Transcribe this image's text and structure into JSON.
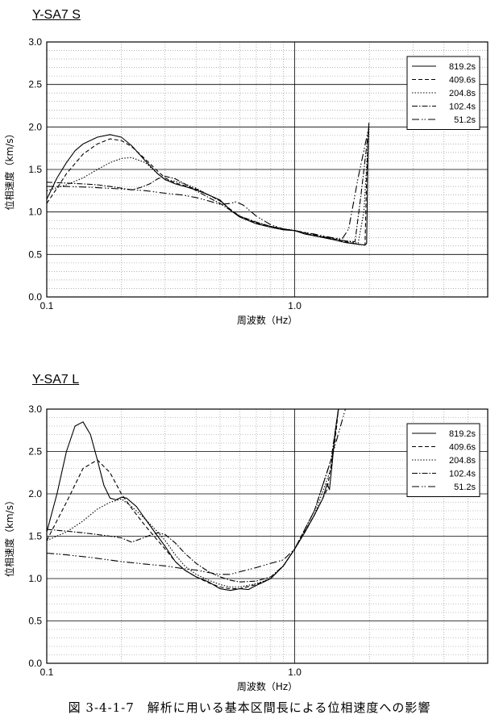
{
  "caption": "図 3-4-1-7　解析に用いる基本区間長による位相速度への影響",
  "chart_data": [
    {
      "type": "line",
      "title": "Y-SA7 S",
      "xlabel": "周波数（Hz）",
      "ylabel": "位相速度（km/s）",
      "xscale": "log",
      "xlim": [
        0.1,
        6.0
      ],
      "ylim": [
        0.0,
        3.0
      ],
      "xticks": [
        "0.1",
        "1.0"
      ],
      "yticks": [
        "0.0",
        "0.5",
        "1.0",
        "1.5",
        "2.0",
        "2.5",
        "3.0"
      ],
      "grid": true,
      "legend_position": "top-right",
      "series": [
        {
          "name": "819.2s",
          "dash": "solid",
          "x": [
            0.1,
            0.11,
            0.12,
            0.13,
            0.14,
            0.16,
            0.18,
            0.2,
            0.22,
            0.25,
            0.28,
            0.3,
            0.33,
            0.36,
            0.4,
            0.45,
            0.5,
            0.55,
            0.6,
            0.7,
            0.8,
            0.9,
            1.0,
            1.1,
            1.2,
            1.4,
            1.6,
            1.8,
            1.92,
            1.95,
            1.97,
            1.99
          ],
          "y": [
            1.15,
            1.4,
            1.58,
            1.72,
            1.8,
            1.88,
            1.91,
            1.88,
            1.78,
            1.6,
            1.45,
            1.38,
            1.33,
            1.3,
            1.26,
            1.2,
            1.14,
            1.02,
            0.94,
            0.86,
            0.82,
            0.79,
            0.78,
            0.74,
            0.72,
            0.68,
            0.64,
            0.62,
            0.61,
            0.63,
            1.5,
            2.05
          ]
        },
        {
          "name": "409.6s",
          "dash": "5,3",
          "x": [
            0.1,
            0.11,
            0.12,
            0.14,
            0.16,
            0.18,
            0.2,
            0.22,
            0.25,
            0.28,
            0.3,
            0.33,
            0.36,
            0.4,
            0.45,
            0.5,
            0.55,
            0.6,
            0.7,
            0.8,
            0.9,
            1.0,
            1.2,
            1.4,
            1.6,
            1.8,
            1.92,
            1.95,
            1.99
          ],
          "y": [
            1.1,
            1.28,
            1.45,
            1.68,
            1.8,
            1.86,
            1.84,
            1.77,
            1.62,
            1.48,
            1.4,
            1.34,
            1.31,
            1.27,
            1.2,
            1.13,
            1.03,
            0.95,
            0.87,
            0.83,
            0.8,
            0.78,
            0.72,
            0.69,
            0.65,
            0.62,
            0.61,
            1.4,
            2.0
          ]
        },
        {
          "name": "204.8s",
          "dash": "1.5,2",
          "x": [
            0.1,
            0.12,
            0.14,
            0.16,
            0.18,
            0.2,
            0.22,
            0.25,
            0.28,
            0.3,
            0.33,
            0.36,
            0.4,
            0.45,
            0.5,
            0.55,
            0.6,
            0.7,
            0.8,
            0.9,
            1.0,
            1.2,
            1.4,
            1.6,
            1.8,
            1.9,
            1.99
          ],
          "y": [
            1.25,
            1.32,
            1.4,
            1.5,
            1.58,
            1.63,
            1.64,
            1.58,
            1.45,
            1.38,
            1.36,
            1.33,
            1.28,
            1.2,
            1.13,
            1.03,
            0.95,
            0.88,
            0.83,
            0.8,
            0.78,
            0.72,
            0.69,
            0.66,
            0.63,
            1.0,
            2.0
          ]
        },
        {
          "name": "102.4s",
          "dash": "7,2,1.5,2",
          "x": [
            0.1,
            0.12,
            0.14,
            0.16,
            0.18,
            0.2,
            0.22,
            0.24,
            0.26,
            0.28,
            0.3,
            0.33,
            0.36,
            0.4,
            0.45,
            0.5,
            0.55,
            0.6,
            0.7,
            0.8,
            0.9,
            1.0,
            1.2,
            1.4,
            1.6,
            1.75,
            1.85,
            1.99
          ],
          "y": [
            1.35,
            1.34,
            1.33,
            1.32,
            1.3,
            1.28,
            1.26,
            1.29,
            1.33,
            1.39,
            1.42,
            1.39,
            1.33,
            1.25,
            1.17,
            1.1,
            1.02,
            0.95,
            0.88,
            0.83,
            0.8,
            0.78,
            0.73,
            0.69,
            0.66,
            0.65,
            1.2,
            2.0
          ]
        },
        {
          "name": "51.2s",
          "dash": "9,3,1.5,2,1.5,3",
          "x": [
            0.1,
            0.12,
            0.15,
            0.2,
            0.25,
            0.3,
            0.35,
            0.4,
            0.45,
            0.5,
            0.55,
            0.58,
            0.62,
            0.7,
            0.8,
            0.9,
            1.0,
            1.2,
            1.4,
            1.55,
            1.65,
            1.8,
            1.99
          ],
          "y": [
            1.3,
            1.3,
            1.29,
            1.27,
            1.25,
            1.22,
            1.2,
            1.17,
            1.13,
            1.09,
            1.1,
            1.12,
            1.08,
            0.95,
            0.85,
            0.8,
            0.78,
            0.74,
            0.7,
            0.68,
            0.8,
            1.4,
            2.0
          ]
        }
      ]
    },
    {
      "type": "line",
      "title": "Y-SA7 L",
      "xlabel": "周波数（Hz）",
      "ylabel": "位相速度（km/s）",
      "xscale": "log",
      "xlim": [
        0.1,
        6.0
      ],
      "ylim": [
        0.0,
        3.0
      ],
      "xticks": [
        "0.1",
        "1.0"
      ],
      "yticks": [
        "0.0",
        "0.5",
        "1.0",
        "1.5",
        "2.0",
        "2.5",
        "3.0"
      ],
      "grid": true,
      "legend_position": "top-right",
      "series": [
        {
          "name": "819.2s",
          "dash": "solid",
          "x": [
            0.1,
            0.11,
            0.12,
            0.13,
            0.14,
            0.15,
            0.16,
            0.17,
            0.18,
            0.19,
            0.2,
            0.21,
            0.23,
            0.25,
            0.28,
            0.3,
            0.33,
            0.36,
            0.4,
            0.45,
            0.5,
            0.55,
            0.6,
            0.65,
            0.7,
            0.75,
            0.8,
            0.9,
            1.0,
            1.1,
            1.2,
            1.3,
            1.35,
            1.38,
            1.42,
            1.45,
            1.5
          ],
          "y": [
            1.55,
            2.0,
            2.5,
            2.8,
            2.85,
            2.7,
            2.4,
            2.1,
            1.95,
            1.93,
            1.96,
            1.95,
            1.85,
            1.7,
            1.5,
            1.38,
            1.2,
            1.1,
            1.02,
            0.96,
            0.88,
            0.86,
            0.88,
            0.87,
            0.92,
            0.96,
            1.0,
            1.15,
            1.35,
            1.55,
            1.75,
            1.95,
            2.12,
            2.05,
            2.4,
            2.7,
            3.0
          ]
        },
        {
          "name": "409.6s",
          "dash": "5,3",
          "x": [
            0.1,
            0.12,
            0.14,
            0.16,
            0.18,
            0.2,
            0.22,
            0.25,
            0.28,
            0.3,
            0.33,
            0.36,
            0.4,
            0.45,
            0.5,
            0.55,
            0.6,
            0.7,
            0.8,
            0.9,
            1.0,
            1.2,
            1.35,
            1.45,
            1.5
          ],
          "y": [
            1.45,
            1.9,
            2.3,
            2.4,
            2.25,
            2.0,
            1.83,
            1.62,
            1.45,
            1.35,
            1.2,
            1.1,
            1.02,
            0.95,
            0.9,
            0.88,
            0.88,
            0.93,
            1.0,
            1.15,
            1.35,
            1.75,
            2.05,
            2.6,
            3.0
          ]
        },
        {
          "name": "204.8s",
          "dash": "1.5,2",
          "x": [
            0.1,
            0.12,
            0.14,
            0.16,
            0.18,
            0.2,
            0.22,
            0.25,
            0.28,
            0.3,
            0.33,
            0.36,
            0.4,
            0.45,
            0.5,
            0.55,
            0.6,
            0.7,
            0.8,
            0.9,
            1.0,
            1.2,
            1.4,
            1.5
          ],
          "y": [
            1.45,
            1.55,
            1.68,
            1.82,
            1.9,
            1.94,
            1.85,
            1.7,
            1.55,
            1.45,
            1.28,
            1.15,
            1.05,
            0.98,
            0.93,
            0.9,
            0.9,
            0.94,
            1.0,
            1.15,
            1.35,
            1.75,
            2.3,
            3.0
          ]
        },
        {
          "name": "102.4s",
          "dash": "7,2,1.5,2",
          "x": [
            0.1,
            0.12,
            0.14,
            0.16,
            0.18,
            0.2,
            0.22,
            0.24,
            0.26,
            0.28,
            0.3,
            0.33,
            0.36,
            0.4,
            0.45,
            0.5,
            0.55,
            0.6,
            0.7,
            0.8,
            0.9,
            1.0,
            1.2,
            1.4,
            1.5
          ],
          "y": [
            1.58,
            1.56,
            1.54,
            1.52,
            1.5,
            1.48,
            1.43,
            1.47,
            1.51,
            1.54,
            1.52,
            1.42,
            1.3,
            1.18,
            1.08,
            1.02,
            0.98,
            0.96,
            0.97,
            1.02,
            1.15,
            1.35,
            1.8,
            2.4,
            3.0
          ]
        },
        {
          "name": "51.2s",
          "dash": "9,3,1.5,2,1.5,3",
          "x": [
            0.1,
            0.12,
            0.15,
            0.2,
            0.25,
            0.3,
            0.35,
            0.4,
            0.45,
            0.5,
            0.55,
            0.6,
            0.7,
            0.8,
            0.9,
            1.0,
            1.2,
            1.4,
            1.6
          ],
          "y": [
            1.3,
            1.28,
            1.25,
            1.2,
            1.17,
            1.15,
            1.12,
            1.1,
            1.07,
            1.05,
            1.05,
            1.08,
            1.13,
            1.18,
            1.22,
            1.35,
            1.8,
            2.4,
            3.0
          ]
        }
      ]
    }
  ]
}
